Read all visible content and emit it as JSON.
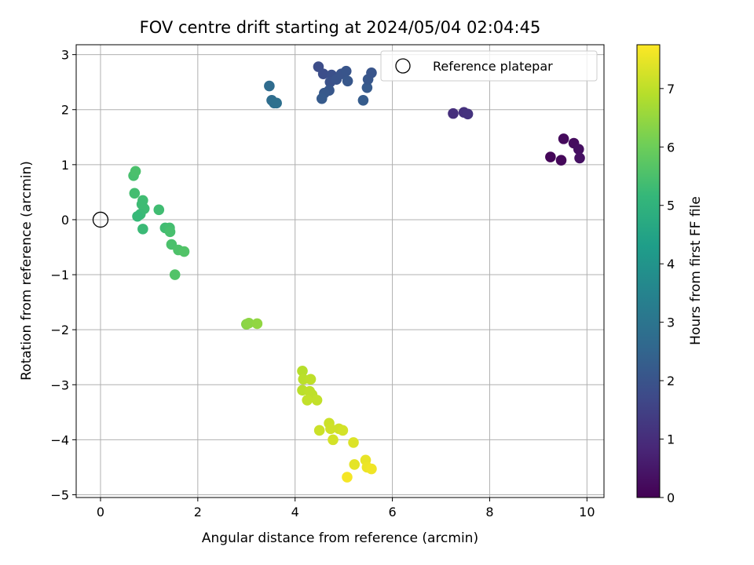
{
  "chart_data": {
    "type": "scatter",
    "title": "FOV centre drift starting at 2024/05/04 02:04:45",
    "xlabel": "Angular distance from reference (arcmin)",
    "ylabel": "Rotation from reference (arcmin)",
    "xlim": [
      -0.5,
      10.35
    ],
    "ylim": [
      -5.05,
      3.18
    ],
    "xticks": [
      0,
      2,
      4,
      6,
      8,
      10
    ],
    "yticks": [
      -5,
      -4,
      -3,
      -2,
      -1,
      0,
      1,
      2,
      3
    ],
    "xtick_labels": [
      "0",
      "2",
      "4",
      "6",
      "8",
      "10"
    ],
    "ytick_labels": [
      "−5",
      "−4",
      "−3",
      "−2",
      "−1",
      "0",
      "1",
      "2",
      "3"
    ],
    "grid": true,
    "legend": {
      "position": "top-right",
      "label": "Reference platepar"
    },
    "reference_point": {
      "x": 0,
      "y": 0
    },
    "colorbar": {
      "label": "Hours from first FF file",
      "min": 0,
      "max": 7.75,
      "ticks": [
        0,
        1,
        2,
        3,
        4,
        5,
        6,
        7
      ],
      "tick_labels": [
        "0",
        "1",
        "2",
        "3",
        "4",
        "5",
        "6",
        "7"
      ],
      "colormap": "viridis"
    },
    "colors": {
      "grid": "#b0b0b0",
      "viridis": [
        "#440154",
        "#482878",
        "#3e4a89",
        "#31688e",
        "#26828e",
        "#1f9e89",
        "#35b779",
        "#6ece58",
        "#b5de2b",
        "#fde725"
      ]
    },
    "points": [
      {
        "x": 9.25,
        "y": 1.14,
        "c": 0.1
      },
      {
        "x": 9.47,
        "y": 1.08,
        "c": 0.15
      },
      {
        "x": 9.52,
        "y": 1.47,
        "c": 0.2
      },
      {
        "x": 9.73,
        "y": 1.39,
        "c": 0.25
      },
      {
        "x": 9.83,
        "y": 1.28,
        "c": 0.3
      },
      {
        "x": 9.85,
        "y": 1.12,
        "c": 0.35
      },
      {
        "x": 7.25,
        "y": 1.93,
        "c": 1.05
      },
      {
        "x": 7.47,
        "y": 1.95,
        "c": 1.1
      },
      {
        "x": 7.55,
        "y": 1.92,
        "c": 1.15
      },
      {
        "x": 4.48,
        "y": 2.78,
        "c": 1.8
      },
      {
        "x": 4.58,
        "y": 2.65,
        "c": 1.85
      },
      {
        "x": 4.75,
        "y": 2.63,
        "c": 1.9
      },
      {
        "x": 4.72,
        "y": 2.5,
        "c": 1.95
      },
      {
        "x": 4.85,
        "y": 2.55,
        "c": 2.0
      },
      {
        "x": 4.95,
        "y": 2.65,
        "c": 2.0
      },
      {
        "x": 5.05,
        "y": 2.7,
        "c": 2.05
      },
      {
        "x": 5.08,
        "y": 2.52,
        "c": 2.1
      },
      {
        "x": 4.7,
        "y": 2.35,
        "c": 2.1
      },
      {
        "x": 4.6,
        "y": 2.3,
        "c": 2.15
      },
      {
        "x": 4.55,
        "y": 2.2,
        "c": 2.2
      },
      {
        "x": 5.4,
        "y": 2.17,
        "c": 2.25
      },
      {
        "x": 5.48,
        "y": 2.4,
        "c": 2.2
      },
      {
        "x": 5.5,
        "y": 2.55,
        "c": 2.1
      },
      {
        "x": 5.57,
        "y": 2.67,
        "c": 2.05
      },
      {
        "x": 3.47,
        "y": 2.43,
        "c": 2.7
      },
      {
        "x": 3.52,
        "y": 2.17,
        "c": 2.75
      },
      {
        "x": 3.57,
        "y": 2.12,
        "c": 2.8
      },
      {
        "x": 3.62,
        "y": 2.12,
        "c": 2.85
      },
      {
        "x": 0.68,
        "y": 0.8,
        "c": 5.45
      },
      {
        "x": 0.72,
        "y": 0.88,
        "c": 5.5
      },
      {
        "x": 0.7,
        "y": 0.48,
        "c": 5.4
      },
      {
        "x": 0.87,
        "y": 0.35,
        "c": 5.35
      },
      {
        "x": 0.85,
        "y": 0.28,
        "c": 5.3
      },
      {
        "x": 0.9,
        "y": 0.2,
        "c": 5.3
      },
      {
        "x": 0.82,
        "y": 0.1,
        "c": 5.25
      },
      {
        "x": 0.76,
        "y": 0.06,
        "c": 5.2
      },
      {
        "x": 1.2,
        "y": 0.18,
        "c": 5.35
      },
      {
        "x": 0.87,
        "y": -0.17,
        "c": 5.25
      },
      {
        "x": 1.33,
        "y": -0.15,
        "c": 5.35
      },
      {
        "x": 1.42,
        "y": -0.15,
        "c": 5.4
      },
      {
        "x": 1.43,
        "y": -0.22,
        "c": 5.45
      },
      {
        "x": 1.46,
        "y": -0.45,
        "c": 5.5
      },
      {
        "x": 1.6,
        "y": -0.55,
        "c": 5.55
      },
      {
        "x": 1.72,
        "y": -0.58,
        "c": 5.6
      },
      {
        "x": 1.53,
        "y": -1.0,
        "c": 5.6
      },
      {
        "x": 3.0,
        "y": -1.9,
        "c": 6.35
      },
      {
        "x": 3.05,
        "y": -1.88,
        "c": 6.4
      },
      {
        "x": 3.22,
        "y": -1.89,
        "c": 6.45
      },
      {
        "x": 4.15,
        "y": -2.75,
        "c": 6.9
      },
      {
        "x": 4.17,
        "y": -2.9,
        "c": 6.95
      },
      {
        "x": 4.32,
        "y": -2.9,
        "c": 7.0
      },
      {
        "x": 4.15,
        "y": -3.1,
        "c": 6.95
      },
      {
        "x": 4.3,
        "y": -3.12,
        "c": 7.0
      },
      {
        "x": 4.35,
        "y": -3.18,
        "c": 7.0
      },
      {
        "x": 4.25,
        "y": -3.28,
        "c": 7.05
      },
      {
        "x": 4.45,
        "y": -3.28,
        "c": 7.05
      },
      {
        "x": 4.5,
        "y": -3.83,
        "c": 7.15
      },
      {
        "x": 4.7,
        "y": -3.7,
        "c": 7.15
      },
      {
        "x": 4.73,
        "y": -3.8,
        "c": 7.2
      },
      {
        "x": 4.9,
        "y": -3.8,
        "c": 7.2
      },
      {
        "x": 4.98,
        "y": -3.83,
        "c": 7.25
      },
      {
        "x": 4.78,
        "y": -4.0,
        "c": 7.25
      },
      {
        "x": 5.2,
        "y": -4.05,
        "c": 7.35
      },
      {
        "x": 5.22,
        "y": -4.45,
        "c": 7.45
      },
      {
        "x": 5.45,
        "y": -4.37,
        "c": 7.5
      },
      {
        "x": 5.48,
        "y": -4.5,
        "c": 7.55
      },
      {
        "x": 5.57,
        "y": -4.53,
        "c": 7.6
      },
      {
        "x": 5.07,
        "y": -4.68,
        "c": 7.65
      }
    ]
  }
}
